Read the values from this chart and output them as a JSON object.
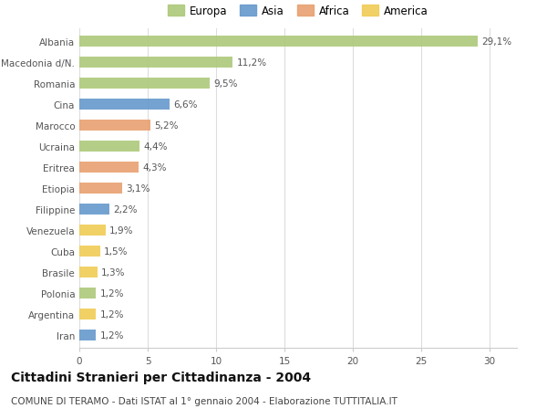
{
  "categories": [
    "Albania",
    "Macedonia d/N.",
    "Romania",
    "Cina",
    "Marocco",
    "Ucraina",
    "Eritrea",
    "Etiopia",
    "Filippine",
    "Venezuela",
    "Cuba",
    "Brasile",
    "Polonia",
    "Argentina",
    "Iran"
  ],
  "values": [
    29.1,
    11.2,
    9.5,
    6.6,
    5.2,
    4.4,
    4.3,
    3.1,
    2.2,
    1.9,
    1.5,
    1.3,
    1.2,
    1.2,
    1.2
  ],
  "labels": [
    "29,1%",
    "11,2%",
    "9,5%",
    "6,6%",
    "5,2%",
    "4,4%",
    "4,3%",
    "3,1%",
    "2,2%",
    "1,9%",
    "1,5%",
    "1,3%",
    "1,2%",
    "1,2%",
    "1,2%"
  ],
  "continents": [
    "Europa",
    "Europa",
    "Europa",
    "Asia",
    "Africa",
    "Europa",
    "Africa",
    "Africa",
    "Asia",
    "America",
    "America",
    "America",
    "Europa",
    "America",
    "Asia"
  ],
  "colors": {
    "Europa": "#adc97a",
    "Asia": "#6699cc",
    "Africa": "#e8a070",
    "America": "#f0cc55"
  },
  "title": "Cittadini Stranieri per Cittadinanza - 2004",
  "subtitle": "COMUNE DI TERAMO - Dati ISTAT al 1° gennaio 2004 - Elaborazione TUTTITALIA.IT",
  "xlim": [
    0,
    32
  ],
  "xticks": [
    0,
    5,
    10,
    15,
    20,
    25,
    30
  ],
  "background_color": "#ffffff",
  "plot_background": "#ffffff",
  "grid_color": "#dddddd",
  "bar_height": 0.55,
  "label_fontsize": 7.5,
  "tick_fontsize": 7.5,
  "title_fontsize": 10,
  "subtitle_fontsize": 7.5,
  "legend_fontsize": 8.5
}
